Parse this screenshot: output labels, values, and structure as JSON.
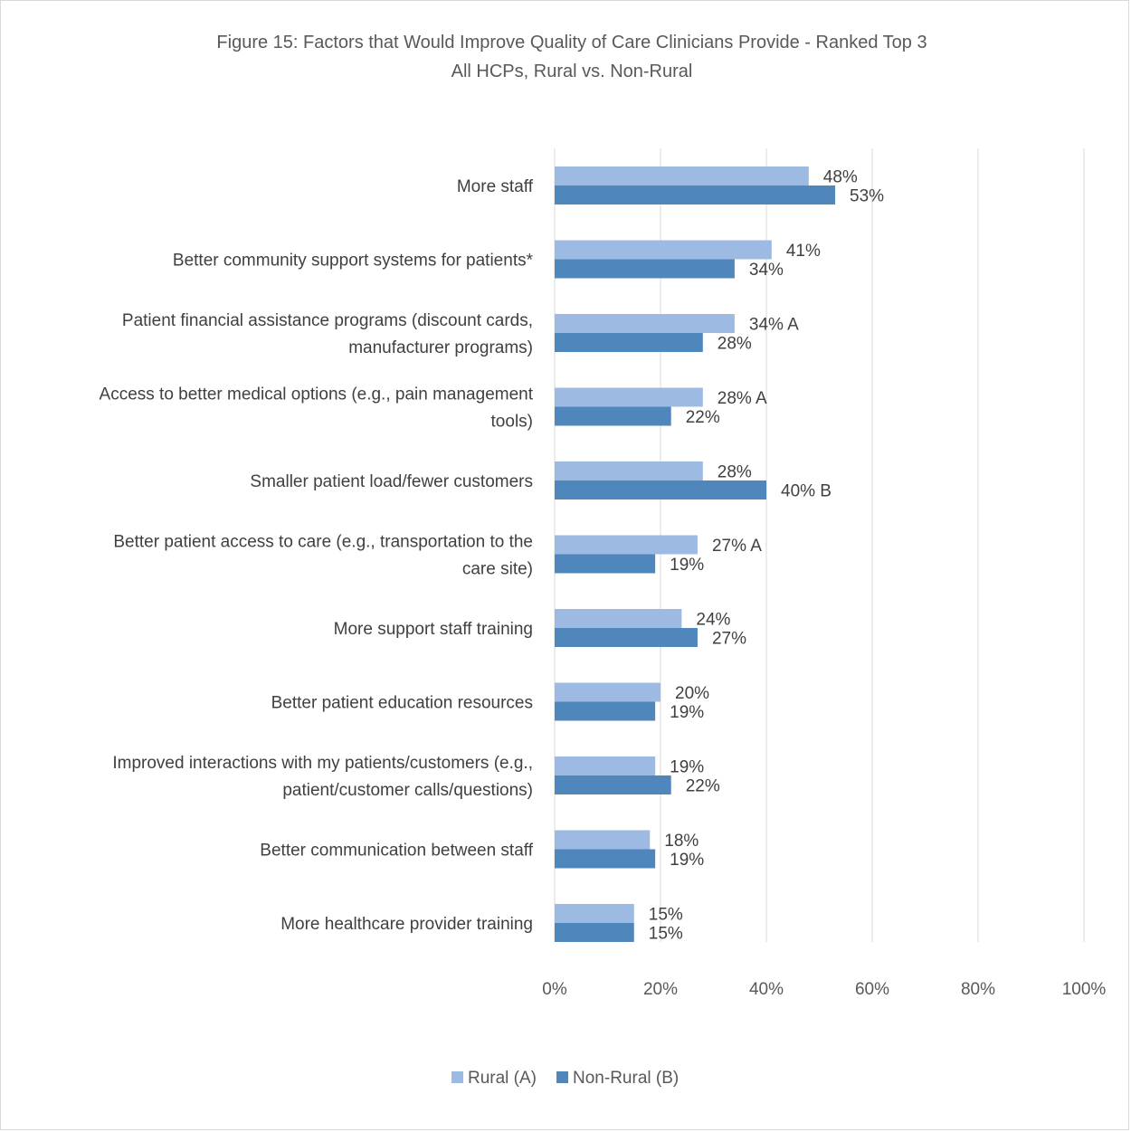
{
  "chart_data": {
    "type": "bar",
    "orientation": "horizontal",
    "title": "Figure 15: Factors that Would Improve Quality of Care Clinicians Provide - Ranked Top 3",
    "subtitle": "All HCPs, Rural vs. Non-Rural",
    "xlim": [
      0,
      100
    ],
    "x_ticks": [
      "0%",
      "20%",
      "40%",
      "60%",
      "80%",
      "100%"
    ],
    "x_tick_values": [
      0,
      20,
      40,
      60,
      80,
      100
    ],
    "grid": true,
    "legend_position": "bottom",
    "categories": [
      [
        "More staff"
      ],
      [
        "Better community support systems for patients*"
      ],
      [
        "Patient financial assistance programs (discount cards,",
        "manufacturer programs)"
      ],
      [
        "Access to better medical options (e.g., pain management",
        "tools)"
      ],
      [
        "Smaller patient load/fewer customers"
      ],
      [
        "Better patient access to care (e.g., transportation to the",
        "care site)"
      ],
      [
        "More support staff training"
      ],
      [
        "Better patient education resources"
      ],
      [
        "Improved interactions with my patients/customers (e.g.,",
        "patient/customer calls/questions)"
      ],
      [
        "Better communication between staff"
      ],
      [
        "More healthcare provider training"
      ]
    ],
    "series": [
      {
        "name": "Rural (A)",
        "color": "#9dbbe2",
        "values": [
          48,
          41,
          34,
          28,
          28,
          27,
          24,
          20,
          19,
          18,
          15
        ],
        "labels": [
          "48%",
          "41%",
          "34% A",
          "28% A",
          "28%",
          "27% A",
          "24%",
          "20%",
          "19%",
          "18%",
          "15%"
        ]
      },
      {
        "name": "Non-Rural (B)",
        "color": "#4f87bd",
        "values": [
          53,
          34,
          28,
          22,
          40,
          19,
          27,
          19,
          22,
          19,
          15
        ],
        "labels": [
          "53%",
          "34%",
          "28%",
          "22%",
          "40% B",
          "19%",
          "27%",
          "19%",
          "22%",
          "19%",
          "15%"
        ]
      }
    ]
  }
}
